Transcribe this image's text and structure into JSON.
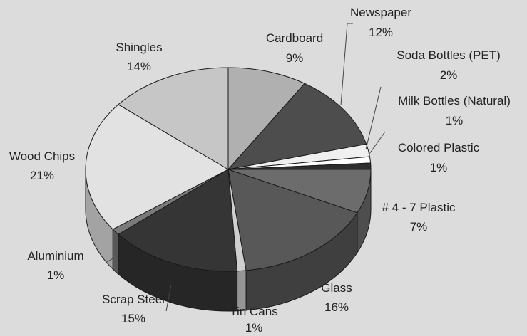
{
  "chart_data": {
    "type": "pie",
    "title": "",
    "style": "3d",
    "slices": [
      {
        "label": "Cardboard",
        "value_text": "9%",
        "value": 9,
        "color": "#b0b0b0"
      },
      {
        "label": "Newspaper",
        "value_text": "12%",
        "value": 12,
        "color": "#4d4d4d"
      },
      {
        "label": "Soda Bottles (PET)",
        "value_text": "2%",
        "value": 2,
        "color": "#f0f0f0"
      },
      {
        "label": "Milk Bottles (Natural)",
        "value_text": "1%",
        "value": 1,
        "color": "#ffffff"
      },
      {
        "label": "Colored Plastic",
        "value_text": "1%",
        "value": 1,
        "color": "#2e2e2e"
      },
      {
        "label": "# 4 - 7 Plastic",
        "value_text": "7%",
        "value": 7,
        "color": "#6c6c6c"
      },
      {
        "label": "Glass",
        "value_text": "16%",
        "value": 16,
        "color": "#585858"
      },
      {
        "label": "Tin Cans",
        "value_text": "1%",
        "value": 1,
        "color": "#cfcfcf"
      },
      {
        "label": "Scrap Steel",
        "value_text": "15%",
        "value": 15,
        "color": "#353535"
      },
      {
        "label": "Aluminium",
        "value_text": "1%",
        "value": 1,
        "color": "#7a7a7a"
      },
      {
        "label": "Wood Chips",
        "value_text": "21%",
        "value": 21,
        "color": "#e2e2e2"
      },
      {
        "label": "Shingles",
        "value_text": "14%",
        "value": 14,
        "color": "#c6c6c6"
      }
    ],
    "legend": "none"
  }
}
